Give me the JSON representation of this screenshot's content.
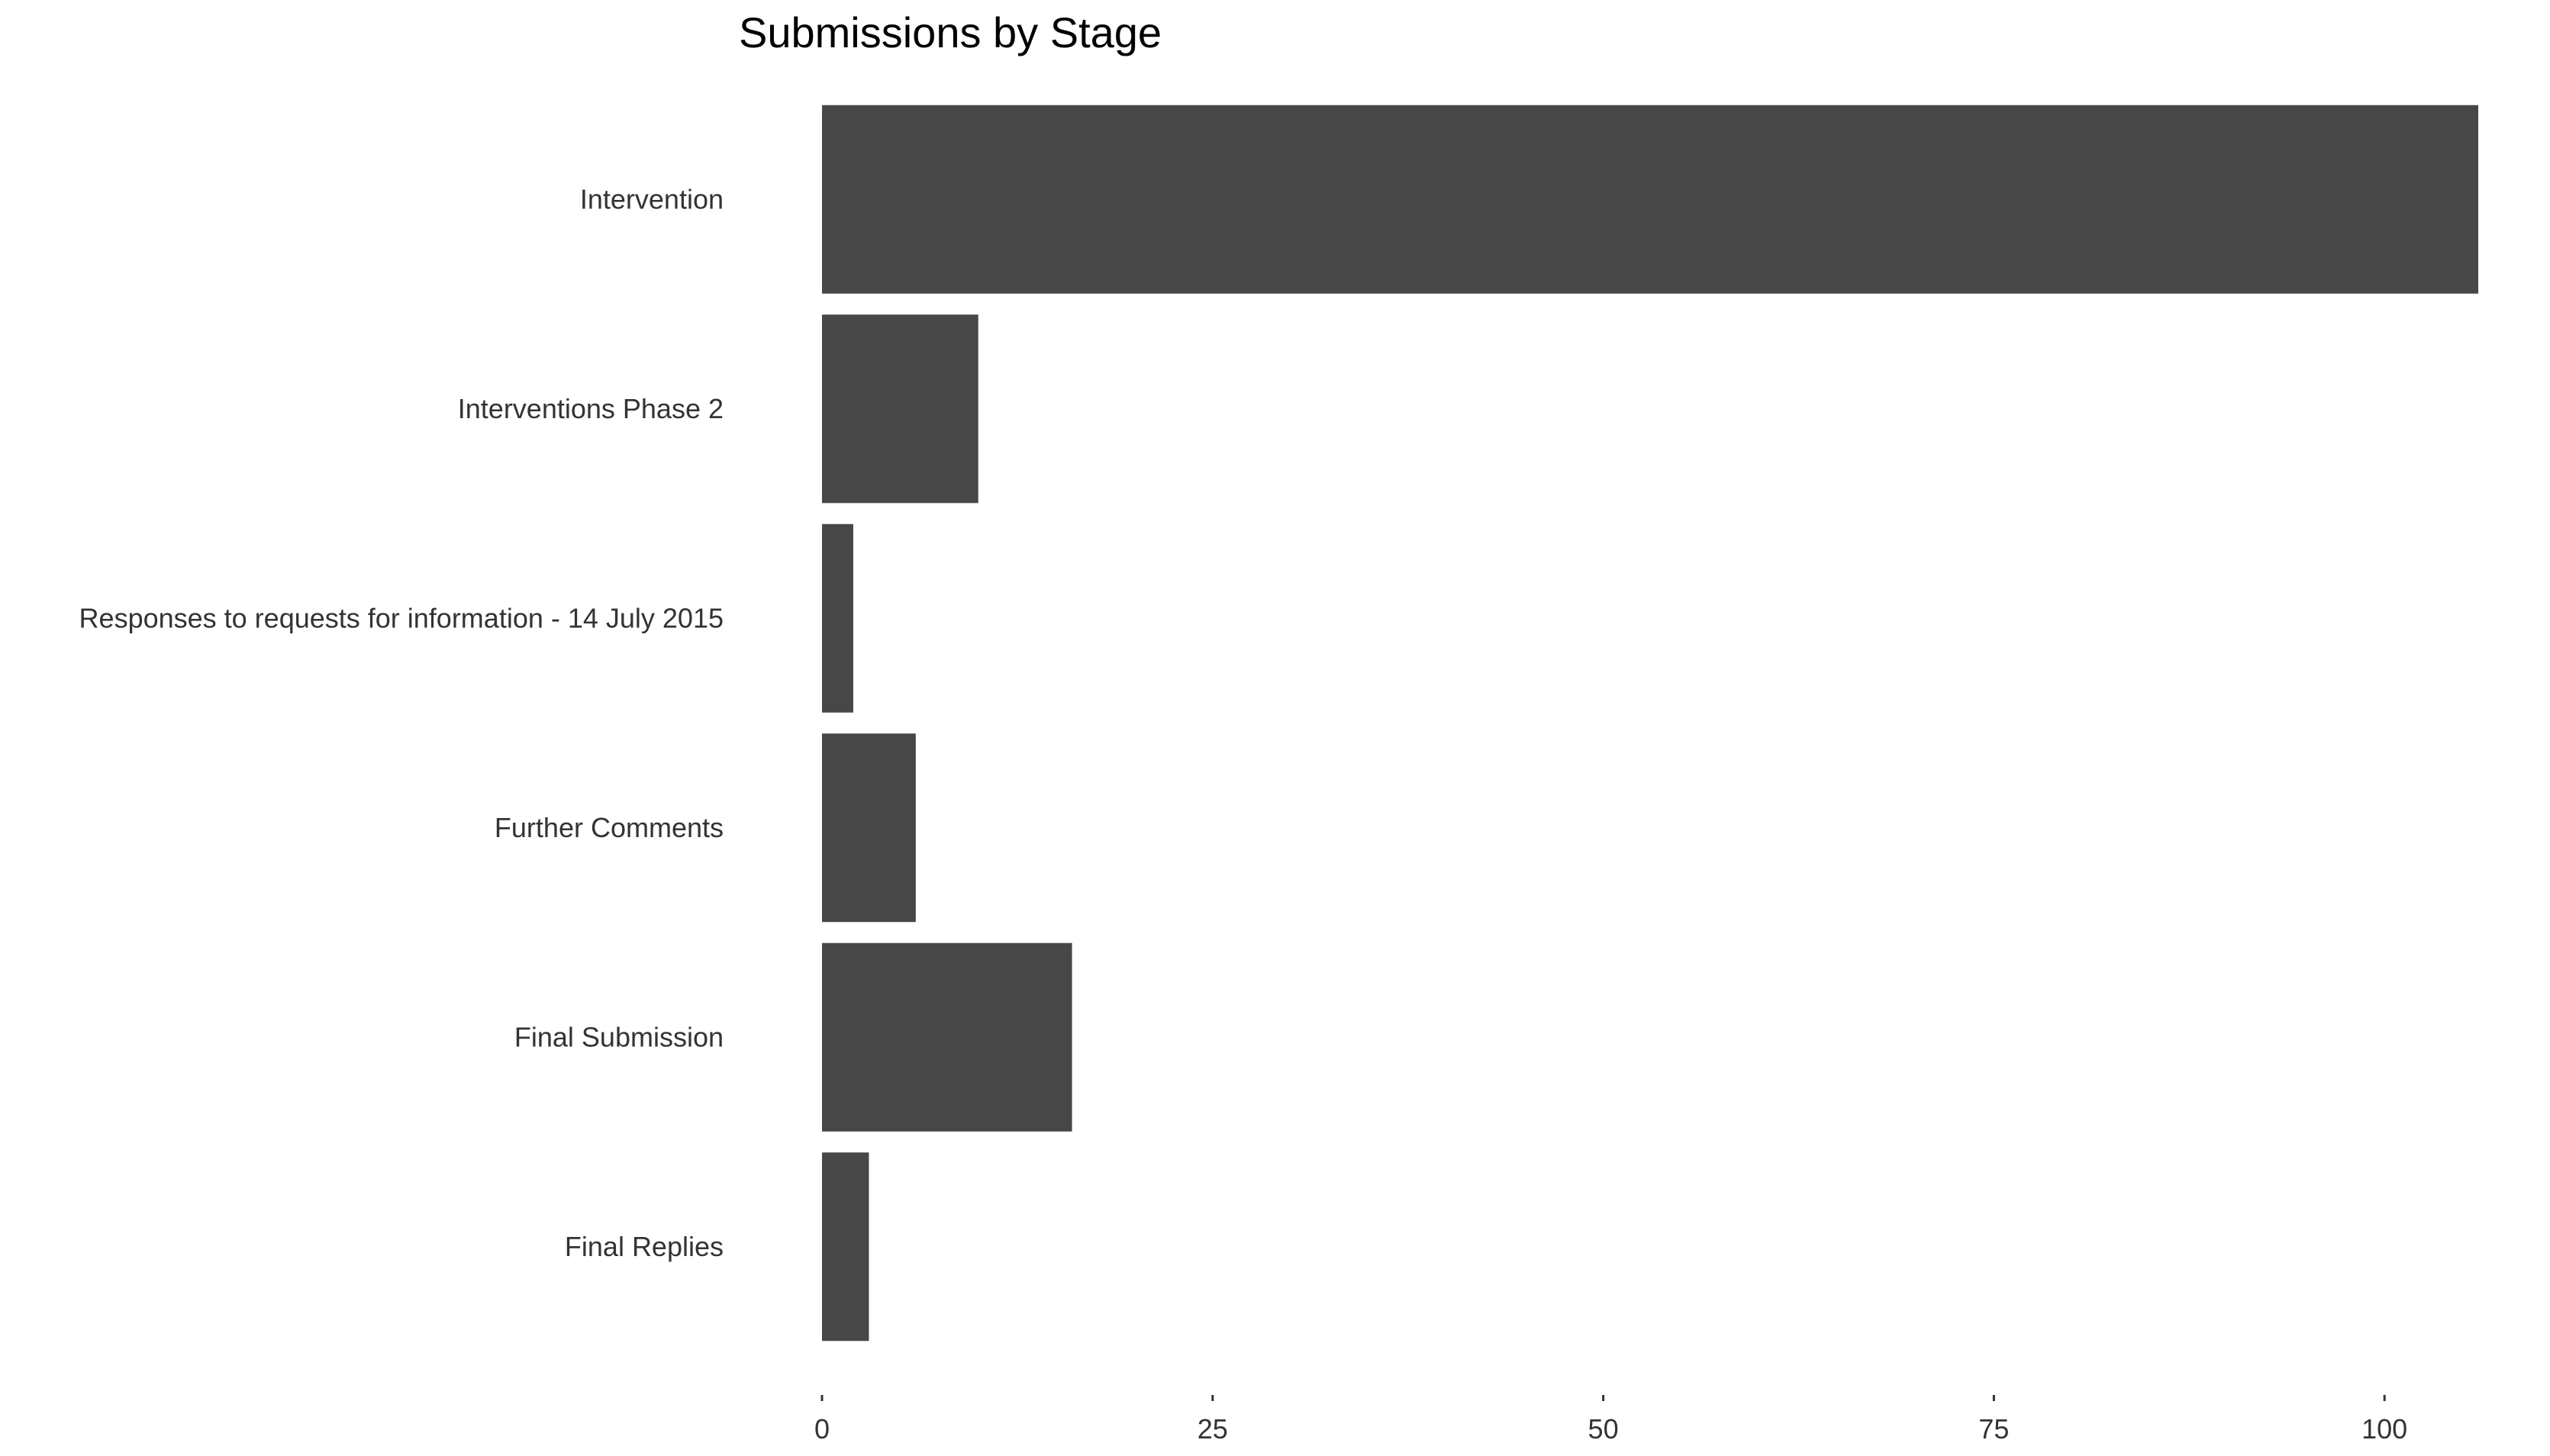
{
  "chart_data": {
    "type": "bar",
    "orientation": "horizontal",
    "title": "Submissions by Stage",
    "xlabel": "",
    "ylabel": "",
    "categories": [
      "Intervention",
      "Interventions Phase 2",
      "Responses to requests for information - 14 July 2015",
      "Further Comments",
      "Final Submission",
      "Final Replies"
    ],
    "values": [
      106,
      10,
      2,
      6,
      16,
      3
    ],
    "xlim": [
      0,
      106
    ],
    "xticks": [
      0,
      25,
      50,
      75,
      100
    ],
    "grid": false,
    "legend": "none",
    "bar_color": "#474747"
  }
}
